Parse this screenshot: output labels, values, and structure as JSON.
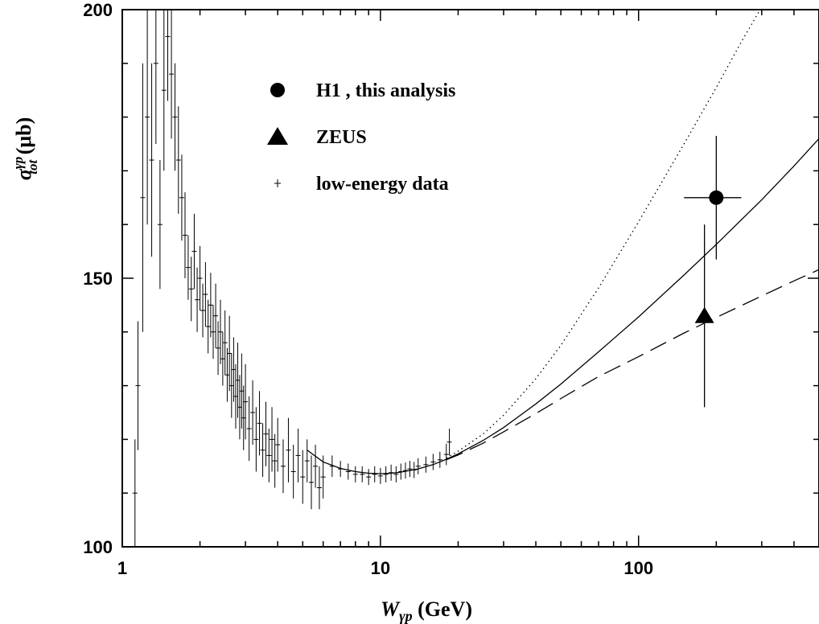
{
  "chart_data": {
    "type": "scatter",
    "title": "",
    "x_scale": "log",
    "xlim": [
      1,
      500
    ],
    "ylim": [
      100,
      200
    ],
    "grid": false,
    "legend_position": "top-left",
    "x_ticks": [
      1,
      10,
      100
    ],
    "x_tick_labels": [
      "1",
      "10",
      "100"
    ],
    "y_ticks": [
      100,
      150,
      200
    ],
    "y_tick_labels": [
      "100",
      "150",
      "200"
    ],
    "xlabel": {
      "main": "W",
      "sub": "γp",
      "unit": " (GeV)"
    },
    "ylabel": {
      "main": "σ",
      "sup": "γp",
      "sub": "tot",
      "unit": " (μb)"
    },
    "legend": [
      {
        "marker": "circle",
        "label": "H1 , this analysis"
      },
      {
        "marker": "triangle",
        "label": "ZEUS"
      },
      {
        "marker": "plus",
        "label": "low-energy data"
      }
    ],
    "series": [
      {
        "name": "H1 , this analysis",
        "marker": "circle",
        "points": [
          {
            "x": 200,
            "y": 165,
            "y_err": 11.5,
            "x_err_low": 150,
            "x_err_high": 250
          }
        ]
      },
      {
        "name": "ZEUS",
        "marker": "triangle",
        "points": [
          {
            "x": 180,
            "y": 143,
            "y_err_low": 17,
            "y_err_high": 17
          }
        ]
      },
      {
        "name": "low-energy data",
        "marker": "plus",
        "points": [
          {
            "x": 1.12,
            "y": 110,
            "e": 10
          },
          {
            "x": 1.15,
            "y": 130,
            "e": 12
          },
          {
            "x": 1.2,
            "y": 165,
            "e": 25
          },
          {
            "x": 1.25,
            "y": 180,
            "e": 20
          },
          {
            "x": 1.3,
            "y": 172,
            "e": 18
          },
          {
            "x": 1.35,
            "y": 190,
            "e": 15
          },
          {
            "x": 1.4,
            "y": 160,
            "e": 12
          },
          {
            "x": 1.45,
            "y": 185,
            "e": 15
          },
          {
            "x": 1.5,
            "y": 195,
            "e": 12
          },
          {
            "x": 1.55,
            "y": 188,
            "e": 12
          },
          {
            "x": 1.6,
            "y": 180,
            "e": 10
          },
          {
            "x": 1.65,
            "y": 172,
            "e": 10
          },
          {
            "x": 1.7,
            "y": 165,
            "e": 8
          },
          {
            "x": 1.75,
            "y": 158,
            "e": 8
          },
          {
            "x": 1.8,
            "y": 152,
            "e": 6
          },
          {
            "x": 1.85,
            "y": 148,
            "e": 6
          },
          {
            "x": 1.9,
            "y": 155,
            "e": 7
          },
          {
            "x": 1.95,
            "y": 146,
            "e": 6
          },
          {
            "x": 2.0,
            "y": 150,
            "e": 6
          },
          {
            "x": 2.05,
            "y": 144,
            "e": 5
          },
          {
            "x": 2.1,
            "y": 147,
            "e": 6
          },
          {
            "x": 2.15,
            "y": 141,
            "e": 5
          },
          {
            "x": 2.2,
            "y": 145,
            "e": 6
          },
          {
            "x": 2.25,
            "y": 140,
            "e": 5
          },
          {
            "x": 2.3,
            "y": 143,
            "e": 6
          },
          {
            "x": 2.35,
            "y": 137,
            "e": 5
          },
          {
            "x": 2.4,
            "y": 140,
            "e": 6
          },
          {
            "x": 2.45,
            "y": 135,
            "e": 5
          },
          {
            "x": 2.5,
            "y": 138,
            "e": 6
          },
          {
            "x": 2.55,
            "y": 132,
            "e": 5
          },
          {
            "x": 2.6,
            "y": 136,
            "e": 7
          },
          {
            "x": 2.65,
            "y": 130,
            "e": 6
          },
          {
            "x": 2.7,
            "y": 133,
            "e": 6
          },
          {
            "x": 2.75,
            "y": 128,
            "e": 6
          },
          {
            "x": 2.8,
            "y": 131,
            "e": 7
          },
          {
            "x": 2.85,
            "y": 126,
            "e": 6
          },
          {
            "x": 2.9,
            "y": 129,
            "e": 7
          },
          {
            "x": 2.95,
            "y": 124,
            "e": 6
          },
          {
            "x": 3.0,
            "y": 127,
            "e": 7
          },
          {
            "x": 3.1,
            "y": 122,
            "e": 6
          },
          {
            "x": 3.2,
            "y": 125,
            "e": 6
          },
          {
            "x": 3.3,
            "y": 120,
            "e": 6
          },
          {
            "x": 3.4,
            "y": 123,
            "e": 6
          },
          {
            "x": 3.5,
            "y": 118,
            "e": 5
          },
          {
            "x": 3.6,
            "y": 121,
            "e": 6
          },
          {
            "x": 3.7,
            "y": 117,
            "e": 5
          },
          {
            "x": 3.8,
            "y": 120,
            "e": 6
          },
          {
            "x": 3.9,
            "y": 116,
            "e": 5
          },
          {
            "x": 4.0,
            "y": 119,
            "e": 5
          },
          {
            "x": 4.2,
            "y": 115,
            "e": 5
          },
          {
            "x": 4.4,
            "y": 118,
            "e": 6
          },
          {
            "x": 4.6,
            "y": 114,
            "e": 5
          },
          {
            "x": 4.8,
            "y": 117,
            "e": 5
          },
          {
            "x": 5.0,
            "y": 113,
            "e": 5
          },
          {
            "x": 5.2,
            "y": 116,
            "e": 4
          },
          {
            "x": 5.4,
            "y": 112,
            "e": 5
          },
          {
            "x": 5.6,
            "y": 115,
            "e": 4
          },
          {
            "x": 5.8,
            "y": 111,
            "e": 4
          },
          {
            "x": 6.0,
            "y": 113,
            "e": 4
          },
          {
            "x": 6.5,
            "y": 115,
            "e": 2
          },
          {
            "x": 7.0,
            "y": 114.5,
            "e": 1.5
          },
          {
            "x": 7.5,
            "y": 114,
            "e": 1.5
          },
          {
            "x": 8.0,
            "y": 113.5,
            "e": 1.5
          },
          {
            "x": 8.5,
            "y": 113.5,
            "e": 1.5
          },
          {
            "x": 9.0,
            "y": 113,
            "e": 1.5
          },
          {
            "x": 9.5,
            "y": 113.5,
            "e": 1.5
          },
          {
            "x": 10,
            "y": 113.2,
            "e": 1.5
          },
          {
            "x": 10.5,
            "y": 113.5,
            "e": 1.5
          },
          {
            "x": 11,
            "y": 113.8,
            "e": 1.5
          },
          {
            "x": 11.5,
            "y": 113.5,
            "e": 1.5
          },
          {
            "x": 12,
            "y": 114,
            "e": 1.5
          },
          {
            "x": 12.5,
            "y": 114.2,
            "e": 1.5
          },
          {
            "x": 13,
            "y": 114.5,
            "e": 1.5
          },
          {
            "x": 13.5,
            "y": 114.3,
            "e": 1.5
          },
          {
            "x": 14,
            "y": 115,
            "e": 1.5
          },
          {
            "x": 15,
            "y": 115.3,
            "e": 1.5
          },
          {
            "x": 16,
            "y": 115.8,
            "e": 1.5
          },
          {
            "x": 17,
            "y": 116.2,
            "e": 1.5
          },
          {
            "x": 18,
            "y": 117.2,
            "e": 2
          },
          {
            "x": 18.5,
            "y": 119.5,
            "e": 2.5
          }
        ]
      }
    ],
    "curves": [
      {
        "style": "solid",
        "x": [
          5.2,
          6,
          7,
          8,
          9,
          10,
          11,
          12,
          14,
          16,
          18,
          20,
          25,
          30,
          40,
          50,
          70,
          100,
          150,
          200,
          300,
          400,
          500
        ],
        "y": [
          118,
          115.8,
          114.6,
          114,
          113.7,
          113.6,
          113.7,
          113.9,
          114.5,
          115.3,
          116.3,
          117.3,
          119.8,
          122.2,
          126.6,
          130.3,
          136.3,
          142.8,
          150.6,
          156.3,
          164.6,
          170.9,
          176
        ]
      },
      {
        "style": "dotted",
        "x": [
          18,
          20,
          25,
          30,
          40,
          50,
          70,
          100,
          150,
          200,
          250,
          300,
          330
        ],
        "y": [
          116.5,
          117.8,
          121,
          124.5,
          131.3,
          137.5,
          148.2,
          160.5,
          175,
          185.5,
          194,
          200.5,
          204
        ]
      },
      {
        "style": "dashed",
        "x": [
          18,
          20,
          25,
          30,
          40,
          50,
          70,
          100,
          150,
          200,
          300,
          400,
          500
        ],
        "y": [
          116.2,
          117.1,
          119.3,
          121.4,
          124.8,
          127.6,
          131.7,
          135.4,
          139.8,
          142.7,
          146.7,
          149.5,
          151.6
        ]
      }
    ]
  }
}
